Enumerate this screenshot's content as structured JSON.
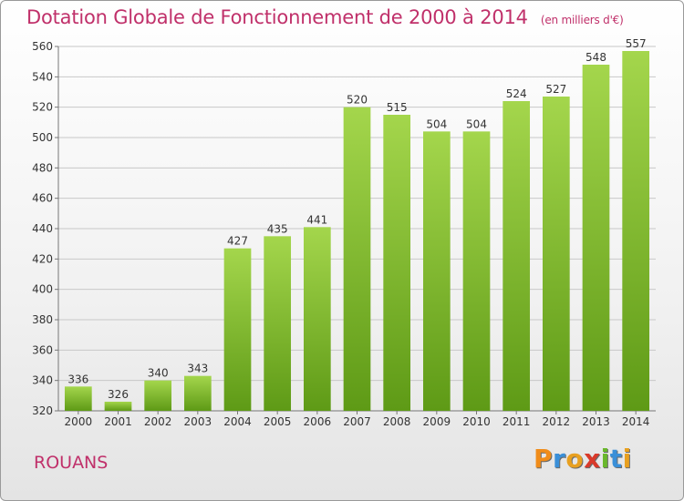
{
  "title": "Dotation Globale de Fonctionnement de 2000 à 2014",
  "title_unit": "(en milliers d'€)",
  "place": "ROUANS",
  "logo": {
    "letters": [
      "P",
      "r",
      "o",
      "x",
      "i",
      "t",
      "i"
    ],
    "colors": [
      "#f08c1a",
      "#3a8fd8",
      "#e8a020",
      "#d93a2b",
      "#6ab82c",
      "#3a8fd8",
      "#e8a020"
    ]
  },
  "chart_data": {
    "type": "bar",
    "categories": [
      "2000",
      "2001",
      "2002",
      "2003",
      "2004",
      "2005",
      "2006",
      "2007",
      "2008",
      "2009",
      "2010",
      "2011",
      "2012",
      "2013",
      "2014"
    ],
    "values": [
      336,
      326,
      340,
      343,
      427,
      435,
      441,
      520,
      515,
      504,
      504,
      524,
      527,
      548,
      557
    ],
    "ylim": [
      320,
      560
    ],
    "yticks": [
      320,
      340,
      360,
      380,
      400,
      420,
      440,
      460,
      480,
      500,
      520,
      540,
      560
    ],
    "grid": true,
    "colors": {
      "bar_light": "#a4d64c",
      "bar_dark": "#5e9a16",
      "grid": "#c8c8c8",
      "text": "#333333"
    }
  }
}
